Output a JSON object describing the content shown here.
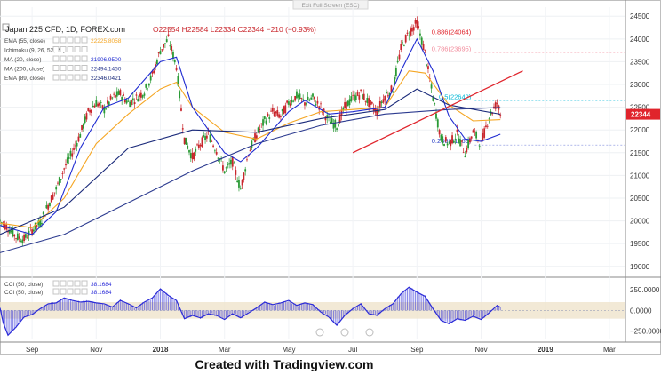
{
  "top_button": "Exit Full Screen (ESC)",
  "caption": "Created with Tradingview.com",
  "legend": {
    "title": "Japan 225 CFD, 1D, FOREX.com",
    "ohlc": "O22554 H22584 L22334 C22344 −210 (−0.93%)",
    "indicators": [
      {
        "label": "EMA (55, close)",
        "value": "22225.8058",
        "color": "#f5a623"
      },
      {
        "label": "Ichimoku (9, 26, 52, 26)",
        "value": "",
        "color": "#9aa4c0"
      },
      {
        "label": "MA (20, close)",
        "value": "21906.9500",
        "color": "#1f2bd1"
      },
      {
        "label": "MA (200, close)",
        "value": "22494.1450",
        "color": "#2b3a8f"
      },
      {
        "label": "EMA (89, close)",
        "value": "22346.0421",
        "color": "#1a2a7a"
      }
    ],
    "cci": [
      {
        "label": "CCI (50, close)",
        "value": "38.1684"
      },
      {
        "label": "CCI (50, close)",
        "value": "38.1684"
      }
    ]
  },
  "price_label": "22344",
  "fib_levels": [
    {
      "label": "0.886(24064)",
      "value": 24064,
      "color": "#e0242c"
    },
    {
      "label": "0.786(23695)",
      "value": 23695,
      "color": "#f28b9b"
    },
    {
      "label": "0.5(22642)",
      "value": 22642,
      "color": "#00b7d6"
    },
    {
      "label": "0.236(21669)",
      "value": 21669,
      "color": "#2f44c7"
    }
  ],
  "colors": {
    "up": "#2a9a35",
    "down": "#c9262c",
    "trendline": "#e0242c",
    "cci": "#2b2bd8",
    "cci_band": "#efe3cc"
  },
  "chart_data": {
    "type": "line",
    "symbol": "Japan 225 CFD",
    "timeframe": "1D",
    "x_ticks": [
      "Sep",
      "Nov",
      "2018",
      "Mar",
      "May",
      "Jul",
      "Sep",
      "Nov",
      "2019",
      "Mar"
    ],
    "y_ticks": [
      19000,
      19500,
      20000,
      20500,
      21000,
      21500,
      22000,
      22500,
      23000,
      23500,
      24000,
      24500
    ],
    "ylim": [
      18800,
      24700
    ],
    "x_range_months": [
      0.0,
      19.5
    ],
    "month_axis": "months since 2017-08-01",
    "price_path": [
      [
        0.0,
        20000
      ],
      [
        0.25,
        19850
      ],
      [
        0.5,
        19650
      ],
      [
        0.75,
        19600
      ],
      [
        1.0,
        19800
      ],
      [
        1.25,
        19950
      ],
      [
        1.5,
        20350
      ],
      [
        1.75,
        20700
      ],
      [
        2.0,
        21150
      ],
      [
        2.25,
        21500
      ],
      [
        2.5,
        21900
      ],
      [
        2.75,
        22400
      ],
      [
        3.0,
        22600
      ],
      [
        3.25,
        22450
      ],
      [
        3.5,
        22700
      ],
      [
        3.75,
        22800
      ],
      [
        4.0,
        22600
      ],
      [
        4.25,
        22700
      ],
      [
        4.5,
        22850
      ],
      [
        4.75,
        23200
      ],
      [
        5.0,
        23750
      ],
      [
        5.25,
        24000
      ],
      [
        5.5,
        23400
      ],
      [
        5.75,
        21800
      ],
      [
        6.0,
        21400
      ],
      [
        6.25,
        21700
      ],
      [
        6.5,
        21900
      ],
      [
        6.75,
        21550
      ],
      [
        7.0,
        21100
      ],
      [
        7.25,
        21300
      ],
      [
        7.5,
        20700
      ],
      [
        7.75,
        21500
      ],
      [
        8.0,
        21900
      ],
      [
        8.25,
        22200
      ],
      [
        8.5,
        22400
      ],
      [
        8.75,
        22300
      ],
      [
        9.0,
        22600
      ],
      [
        9.25,
        22750
      ],
      [
        9.5,
        22600
      ],
      [
        9.75,
        22700
      ],
      [
        10.0,
        22500
      ],
      [
        10.25,
        22200
      ],
      [
        10.5,
        22100
      ],
      [
        10.75,
        22500
      ],
      [
        11.0,
        22700
      ],
      [
        11.25,
        22800
      ],
      [
        11.5,
        22600
      ],
      [
        11.75,
        22400
      ],
      [
        12.0,
        22750
      ],
      [
        12.25,
        22900
      ],
      [
        12.5,
        23800
      ],
      [
        12.75,
        24150
      ],
      [
        13.0,
        24350
      ],
      [
        13.25,
        23700
      ],
      [
        13.5,
        22700
      ],
      [
        13.75,
        21800
      ],
      [
        14.0,
        21700
      ],
      [
        14.25,
        21900
      ],
      [
        14.5,
        21500
      ],
      [
        14.75,
        21950
      ],
      [
        15.0,
        21700
      ],
      [
        15.25,
        22300
      ],
      [
        15.5,
        22600
      ],
      [
        15.6,
        22344
      ]
    ],
    "series": [
      {
        "name": "EMA (55, close)",
        "color": "#f5a623",
        "values": [
          [
            0.0,
            19950
          ],
          [
            1.0,
            19850
          ],
          [
            2.0,
            20500
          ],
          [
            3.0,
            21700
          ],
          [
            4.0,
            22350
          ],
          [
            5.0,
            22900
          ],
          [
            5.5,
            23050
          ],
          [
            6.0,
            22500
          ],
          [
            7.0,
            21950
          ],
          [
            8.0,
            21800
          ],
          [
            9.0,
            22150
          ],
          [
            10.0,
            22400
          ],
          [
            11.0,
            22450
          ],
          [
            12.0,
            22500
          ],
          [
            12.75,
            23300
          ],
          [
            13.25,
            23250
          ],
          [
            14.0,
            22550
          ],
          [
            14.75,
            22200
          ],
          [
            15.6,
            22226
          ]
        ]
      },
      {
        "name": "MA (20, close)",
        "color": "#1f2bd1",
        "values": [
          [
            0.0,
            19900
          ],
          [
            1.0,
            19700
          ],
          [
            1.75,
            20200
          ],
          [
            2.5,
            21600
          ],
          [
            3.25,
            22500
          ],
          [
            4.0,
            22700
          ],
          [
            5.0,
            23500
          ],
          [
            5.5,
            23600
          ],
          [
            6.0,
            22500
          ],
          [
            7.0,
            21500
          ],
          [
            7.5,
            21300
          ],
          [
            8.0,
            21600
          ],
          [
            9.0,
            22400
          ],
          [
            9.5,
            22650
          ],
          [
            10.25,
            22350
          ],
          [
            11.0,
            22400
          ],
          [
            12.0,
            22500
          ],
          [
            12.5,
            23300
          ],
          [
            13.0,
            24000
          ],
          [
            13.5,
            23300
          ],
          [
            14.0,
            22300
          ],
          [
            14.5,
            21800
          ],
          [
            15.0,
            21750
          ],
          [
            15.6,
            21907
          ]
        ]
      },
      {
        "name": "MA (200, close)",
        "color": "#2b3a8f",
        "values": [
          [
            0.0,
            19300
          ],
          [
            2.0,
            19700
          ],
          [
            4.0,
            20400
          ],
          [
            6.0,
            21100
          ],
          [
            8.0,
            21700
          ],
          [
            10.0,
            22100
          ],
          [
            12.0,
            22350
          ],
          [
            14.0,
            22450
          ],
          [
            15.6,
            22494
          ]
        ]
      },
      {
        "name": "EMA (89, close)",
        "color": "#1a2a7a",
        "values": [
          [
            0.0,
            19700
          ],
          [
            2.0,
            20300
          ],
          [
            4.0,
            21600
          ],
          [
            6.0,
            22000
          ],
          [
            8.0,
            21950
          ],
          [
            10.0,
            22250
          ],
          [
            12.0,
            22450
          ],
          [
            13.0,
            22900
          ],
          [
            14.0,
            22550
          ],
          [
            15.6,
            22346
          ]
        ]
      }
    ],
    "trendline": {
      "from": [
        11.0,
        21500
      ],
      "to": [
        16.3,
        23300
      ]
    },
    "cci_panel": {
      "y_ticks": [
        250,
        0,
        -250
      ],
      "ylim": [
        -350,
        400
      ],
      "band": [
        -100,
        100
      ],
      "last": 38.1684,
      "values": [
        [
          0.0,
          30
        ],
        [
          0.1,
          -150
        ],
        [
          0.25,
          -300
        ],
        [
          0.5,
          -200
        ],
        [
          0.75,
          -80
        ],
        [
          1.0,
          -50
        ],
        [
          1.25,
          20
        ],
        [
          1.5,
          80
        ],
        [
          1.75,
          90
        ],
        [
          2.0,
          150
        ],
        [
          2.25,
          120
        ],
        [
          2.5,
          100
        ],
        [
          2.75,
          110
        ],
        [
          3.0,
          90
        ],
        [
          3.25,
          80
        ],
        [
          3.5,
          40
        ],
        [
          3.75,
          120
        ],
        [
          4.0,
          80
        ],
        [
          4.25,
          30
        ],
        [
          4.5,
          100
        ],
        [
          4.75,
          150
        ],
        [
          5.0,
          260
        ],
        [
          5.25,
          180
        ],
        [
          5.5,
          120
        ],
        [
          5.75,
          -100
        ],
        [
          6.0,
          -60
        ],
        [
          6.25,
          -90
        ],
        [
          6.5,
          -40
        ],
        [
          6.75,
          -60
        ],
        [
          7.0,
          -110
        ],
        [
          7.25,
          -40
        ],
        [
          7.5,
          -90
        ],
        [
          7.75,
          -30
        ],
        [
          8.0,
          30
        ],
        [
          8.25,
          100
        ],
        [
          8.5,
          70
        ],
        [
          8.75,
          90
        ],
        [
          9.0,
          120
        ],
        [
          9.25,
          60
        ],
        [
          9.5,
          90
        ],
        [
          9.75,
          70
        ],
        [
          10.0,
          -20
        ],
        [
          10.25,
          -80
        ],
        [
          10.5,
          -180
        ],
        [
          10.75,
          -60
        ],
        [
          11.0,
          20
        ],
        [
          11.25,
          80
        ],
        [
          11.5,
          -40
        ],
        [
          11.75,
          -60
        ],
        [
          12.0,
          20
        ],
        [
          12.25,
          80
        ],
        [
          12.5,
          200
        ],
        [
          12.75,
          280
        ],
        [
          13.0,
          220
        ],
        [
          13.25,
          170
        ],
        [
          13.5,
          20
        ],
        [
          13.75,
          -120
        ],
        [
          14.0,
          -160
        ],
        [
          14.25,
          -100
        ],
        [
          14.5,
          -120
        ],
        [
          14.75,
          -70
        ],
        [
          15.0,
          -110
        ],
        [
          15.25,
          -30
        ],
        [
          15.5,
          60
        ],
        [
          15.6,
          38
        ]
      ]
    }
  }
}
